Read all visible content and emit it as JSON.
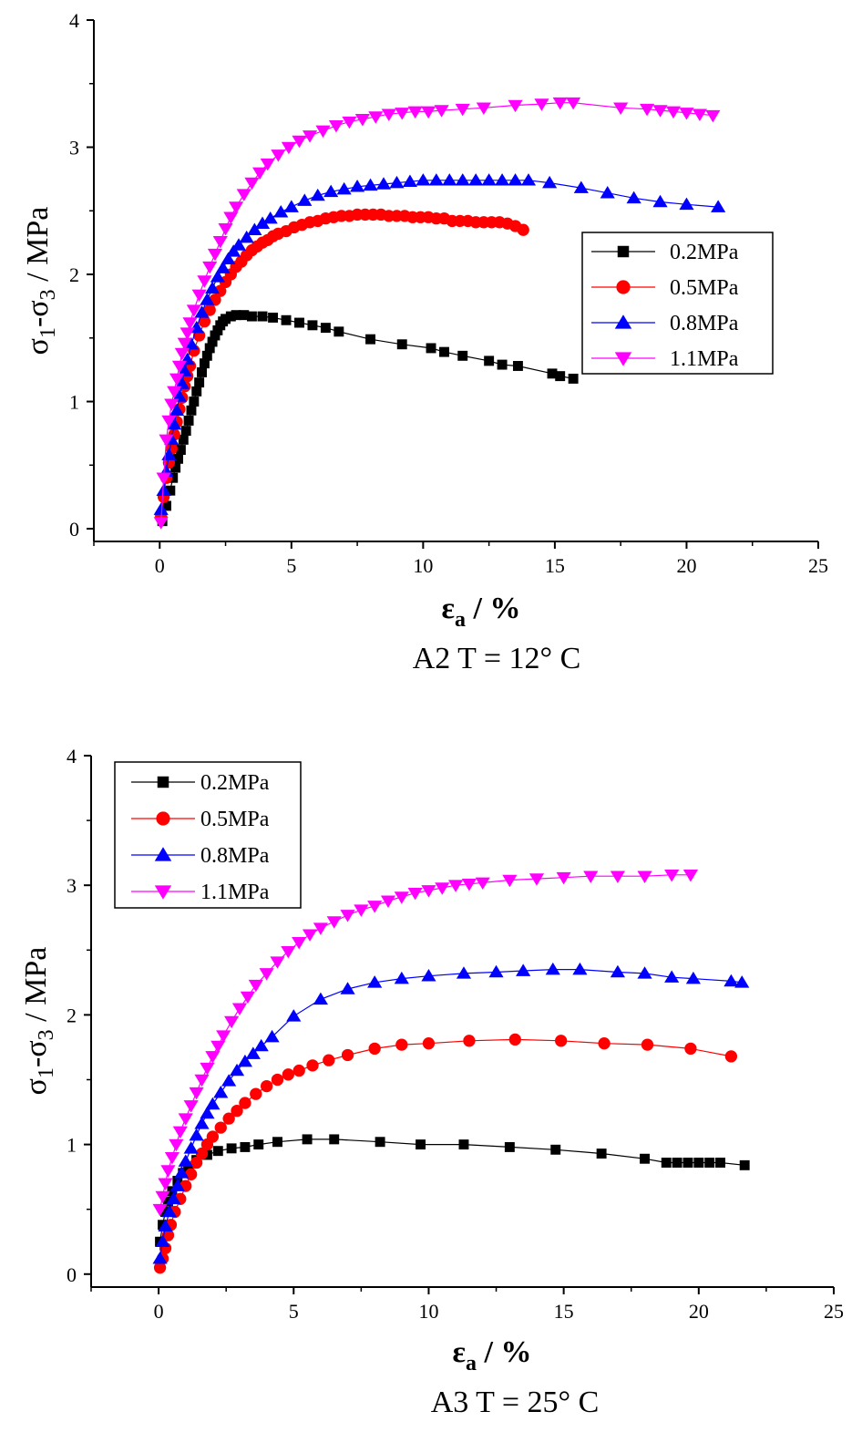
{
  "chart_data": [
    {
      "type": "scatter",
      "caption": "A2 T = 12°  C",
      "xlabel": "εa / %",
      "xlabel_main": "ε",
      "xlabel_sub": "a",
      "xlabel_rest": " / %",
      "ylabel": "σ1-σ3 / MPa",
      "ylabel_parts": [
        "σ",
        "1",
        "-σ",
        "3",
        " / MPa"
      ],
      "xlim": [
        -2.5,
        25
      ],
      "ylim": [
        -0.1,
        4
      ],
      "xticks": [
        0,
        5,
        10,
        15,
        20,
        25
      ],
      "yticks": [
        0,
        1,
        2,
        3,
        4
      ],
      "xtick_labels": [
        "0",
        "5",
        "10",
        "15",
        "20",
        "25"
      ],
      "ytick_labels": [
        "0",
        "1",
        "2",
        "3",
        "4"
      ],
      "legend": "right",
      "series": [
        {
          "name": "0.2MPa",
          "marker": "square",
          "color": "#000000",
          "x": [
            0.1,
            0.25,
            0.4,
            0.5,
            0.6,
            0.7,
            0.8,
            0.9,
            1.0,
            1.1,
            1.2,
            1.3,
            1.4,
            1.5,
            1.6,
            1.7,
            1.8,
            1.9,
            2.0,
            2.1,
            2.2,
            2.3,
            2.4,
            2.5,
            2.7,
            2.9,
            3.2,
            3.5,
            3.9,
            4.3,
            4.8,
            5.3,
            5.8,
            6.3,
            6.8,
            8.0,
            9.2,
            10.3,
            10.8,
            11.5,
            12.5,
            13.0,
            13.6,
            14.9,
            15.2,
            15.7
          ],
          "y": [
            0.06,
            0.18,
            0.3,
            0.4,
            0.48,
            0.55,
            0.62,
            0.7,
            0.77,
            0.85,
            0.93,
            1.0,
            1.08,
            1.15,
            1.23,
            1.3,
            1.36,
            1.42,
            1.47,
            1.52,
            1.56,
            1.6,
            1.63,
            1.65,
            1.67,
            1.68,
            1.68,
            1.67,
            1.67,
            1.66,
            1.64,
            1.62,
            1.6,
            1.58,
            1.55,
            1.49,
            1.45,
            1.42,
            1.39,
            1.36,
            1.32,
            1.29,
            1.28,
            1.22,
            1.2,
            1.18
          ]
        },
        {
          "name": "0.5MPa",
          "marker": "circle",
          "color": "#ff0000",
          "x": [
            0.05,
            0.15,
            0.25,
            0.35,
            0.45,
            0.55,
            0.65,
            0.75,
            0.85,
            0.95,
            1.05,
            1.15,
            1.3,
            1.5,
            1.7,
            1.9,
            2.1,
            2.3,
            2.5,
            2.7,
            2.9,
            3.1,
            3.3,
            3.5,
            3.7,
            3.9,
            4.1,
            4.3,
            4.5,
            4.8,
            5.1,
            5.4,
            5.7,
            6.0,
            6.3,
            6.6,
            6.9,
            7.2,
            7.5,
            7.8,
            8.1,
            8.4,
            8.7,
            9.0,
            9.3,
            9.6,
            9.9,
            10.2,
            10.5,
            10.8,
            11.1,
            11.4,
            11.7,
            12.0,
            12.3,
            12.6,
            12.9,
            13.2,
            13.5,
            13.8
          ],
          "y": [
            0.1,
            0.25,
            0.4,
            0.52,
            0.63,
            0.74,
            0.84,
            0.94,
            1.03,
            1.12,
            1.2,
            1.28,
            1.4,
            1.52,
            1.63,
            1.72,
            1.8,
            1.87,
            1.94,
            2.0,
            2.06,
            2.1,
            2.15,
            2.19,
            2.22,
            2.25,
            2.27,
            2.3,
            2.32,
            2.34,
            2.37,
            2.39,
            2.41,
            2.42,
            2.44,
            2.45,
            2.46,
            2.46,
            2.47,
            2.47,
            2.47,
            2.47,
            2.46,
            2.46,
            2.46,
            2.45,
            2.45,
            2.45,
            2.44,
            2.44,
            2.42,
            2.42,
            2.42,
            2.41,
            2.41,
            2.41,
            2.41,
            2.4,
            2.38,
            2.35
          ]
        },
        {
          "name": "0.8MPa",
          "marker": "triangle-up",
          "color": "#0000ff",
          "x": [
            0.05,
            0.15,
            0.25,
            0.35,
            0.45,
            0.55,
            0.65,
            0.75,
            0.85,
            0.95,
            1.05,
            1.2,
            1.4,
            1.6,
            1.8,
            2.0,
            2.2,
            2.4,
            2.6,
            2.8,
            3.0,
            3.3,
            3.6,
            3.9,
            4.2,
            4.6,
            5.0,
            5.5,
            6.0,
            6.5,
            7.0,
            7.5,
            8.0,
            8.5,
            9.0,
            9.5,
            10.0,
            10.5,
            11.0,
            11.5,
            12.0,
            12.5,
            13.0,
            13.5,
            14.0,
            14.8,
            16.0,
            17.0,
            18.0,
            19.0,
            20.0,
            21.2
          ],
          "y": [
            0.15,
            0.3,
            0.45,
            0.58,
            0.7,
            0.82,
            0.93,
            1.04,
            1.14,
            1.24,
            1.33,
            1.45,
            1.58,
            1.7,
            1.8,
            1.89,
            1.98,
            2.05,
            2.12,
            2.18,
            2.23,
            2.29,
            2.35,
            2.4,
            2.44,
            2.49,
            2.53,
            2.58,
            2.62,
            2.65,
            2.67,
            2.69,
            2.7,
            2.71,
            2.72,
            2.73,
            2.74,
            2.74,
            2.74,
            2.74,
            2.74,
            2.74,
            2.74,
            2.74,
            2.74,
            2.72,
            2.68,
            2.64,
            2.6,
            2.57,
            2.55,
            2.53
          ]
        },
        {
          "name": "1.1MPa",
          "marker": "triangle-down",
          "color": "#ff00ff",
          "x": [
            0.05,
            0.15,
            0.25,
            0.35,
            0.45,
            0.55,
            0.65,
            0.75,
            0.85,
            0.95,
            1.05,
            1.15,
            1.3,
            1.5,
            1.7,
            1.9,
            2.1,
            2.3,
            2.5,
            2.7,
            2.9,
            3.2,
            3.5,
            3.8,
            4.1,
            4.5,
            4.9,
            5.3,
            5.7,
            6.2,
            6.7,
            7.2,
            7.7,
            8.2,
            8.7,
            9.2,
            9.7,
            10.2,
            10.7,
            11.5,
            12.3,
            13.5,
            14.5,
            15.2,
            15.7,
            17.5,
            18.5,
            19.0,
            19.5,
            20.0,
            20.5,
            21.0
          ],
          "y": [
            0.05,
            0.4,
            0.7,
            0.85,
            0.98,
            1.08,
            1.18,
            1.28,
            1.38,
            1.46,
            1.54,
            1.62,
            1.72,
            1.84,
            1.95,
            2.06,
            2.16,
            2.26,
            2.36,
            2.45,
            2.53,
            2.63,
            2.72,
            2.8,
            2.87,
            2.94,
            3.0,
            3.05,
            3.09,
            3.13,
            3.17,
            3.2,
            3.22,
            3.24,
            3.26,
            3.27,
            3.28,
            3.28,
            3.29,
            3.3,
            3.31,
            3.33,
            3.34,
            3.35,
            3.35,
            3.31,
            3.3,
            3.29,
            3.28,
            3.27,
            3.26,
            3.25
          ]
        }
      ]
    },
    {
      "type": "scatter",
      "caption": "A3  T = 25°  C",
      "xlabel": "εa / %",
      "xlabel_main": "ε",
      "xlabel_sub": "a",
      "xlabel_rest": " / %",
      "ylabel": "σ1-σ3 / MPa",
      "ylabel_parts": [
        "σ",
        "1",
        "-σ",
        "3",
        " / MPa"
      ],
      "xlim": [
        -2.5,
        25
      ],
      "ylim": [
        -0.1,
        4
      ],
      "xticks": [
        0,
        5,
        10,
        15,
        20,
        25
      ],
      "yticks": [
        0,
        1,
        2,
        3,
        4
      ],
      "xtick_labels": [
        "0",
        "5",
        "10",
        "15",
        "20",
        "25"
      ],
      "ytick_labels": [
        "0",
        "1",
        "2",
        "3",
        "4"
      ],
      "legend": "top-left",
      "series": [
        {
          "name": "0.2MPa",
          "marker": "square",
          "color": "#000000",
          "x": [
            0.05,
            0.15,
            0.25,
            0.35,
            0.5,
            0.7,
            0.9,
            1.1,
            1.4,
            1.8,
            2.2,
            2.7,
            3.2,
            3.7,
            4.4,
            5.5,
            6.5,
            8.2,
            9.7,
            11.3,
            13.0,
            14.7,
            16.4,
            18.0,
            18.8,
            19.2,
            19.6,
            20.0,
            20.4,
            20.8,
            21.7
          ],
          "y": [
            0.25,
            0.38,
            0.48,
            0.56,
            0.64,
            0.72,
            0.78,
            0.83,
            0.88,
            0.92,
            0.95,
            0.97,
            0.98,
            1.0,
            1.02,
            1.04,
            1.04,
            1.02,
            1.0,
            1.0,
            0.98,
            0.96,
            0.93,
            0.89,
            0.86,
            0.86,
            0.86,
            0.86,
            0.86,
            0.86,
            0.84
          ]
        },
        {
          "name": "0.5MPa",
          "marker": "circle",
          "color": "#ff0000",
          "x": [
            0.05,
            0.15,
            0.25,
            0.35,
            0.45,
            0.6,
            0.8,
            1.0,
            1.2,
            1.4,
            1.6,
            1.8,
            2.0,
            2.3,
            2.6,
            2.9,
            3.2,
            3.6,
            4.0,
            4.4,
            4.8,
            5.2,
            5.7,
            6.3,
            7.0,
            8.0,
            9.0,
            10.0,
            11.5,
            13.2,
            14.9,
            16.5,
            18.1,
            19.7,
            21.2
          ],
          "y": [
            0.05,
            0.12,
            0.2,
            0.3,
            0.38,
            0.48,
            0.58,
            0.68,
            0.77,
            0.86,
            0.93,
            1.0,
            1.06,
            1.13,
            1.2,
            1.26,
            1.32,
            1.39,
            1.45,
            1.5,
            1.54,
            1.57,
            1.61,
            1.65,
            1.69,
            1.74,
            1.77,
            1.78,
            1.8,
            1.81,
            1.8,
            1.78,
            1.77,
            1.74,
            1.68
          ]
        },
        {
          "name": "0.8MPa",
          "marker": "triangle-up",
          "color": "#0000ff",
          "x": [
            0.05,
            0.15,
            0.25,
            0.4,
            0.55,
            0.7,
            0.85,
            1.0,
            1.2,
            1.4,
            1.6,
            1.8,
            2.0,
            2.3,
            2.6,
            2.9,
            3.2,
            3.5,
            3.8,
            4.2,
            5.0,
            6.0,
            7.0,
            8.0,
            9.0,
            10.0,
            11.3,
            12.5,
            13.5,
            14.6,
            15.6,
            17.0,
            18.0,
            19.0,
            19.8,
            21.2,
            21.6
          ],
          "y": [
            0.12,
            0.25,
            0.37,
            0.48,
            0.58,
            0.68,
            0.78,
            0.87,
            0.97,
            1.07,
            1.16,
            1.24,
            1.31,
            1.4,
            1.49,
            1.57,
            1.64,
            1.7,
            1.76,
            1.83,
            1.99,
            2.12,
            2.2,
            2.25,
            2.28,
            2.3,
            2.32,
            2.33,
            2.34,
            2.35,
            2.35,
            2.33,
            2.32,
            2.29,
            2.28,
            2.26,
            2.25
          ]
        },
        {
          "name": "1.1MPa",
          "marker": "triangle-down",
          "color": "#ff00ff",
          "x": [
            0.05,
            0.15,
            0.25,
            0.35,
            0.5,
            0.65,
            0.8,
            1.0,
            1.2,
            1.4,
            1.6,
            1.8,
            2.0,
            2.2,
            2.4,
            2.7,
            3.0,
            3.3,
            3.6,
            4.0,
            4.4,
            4.8,
            5.2,
            5.6,
            6.0,
            6.5,
            7.0,
            7.5,
            8.0,
            8.5,
            9.0,
            9.5,
            10.0,
            10.5,
            11.0,
            11.5,
            12.0,
            13.0,
            14.0,
            15.0,
            16.0,
            17.0,
            18.0,
            19.0,
            19.7
          ],
          "y": [
            0.5,
            0.6,
            0.7,
            0.8,
            0.9,
            1.0,
            1.1,
            1.2,
            1.3,
            1.4,
            1.5,
            1.59,
            1.68,
            1.76,
            1.84,
            1.95,
            2.05,
            2.14,
            2.23,
            2.32,
            2.41,
            2.49,
            2.56,
            2.62,
            2.67,
            2.72,
            2.77,
            2.81,
            2.84,
            2.88,
            2.91,
            2.94,
            2.96,
            2.98,
            3.0,
            3.01,
            3.02,
            3.04,
            3.05,
            3.06,
            3.07,
            3.07,
            3.07,
            3.08,
            3.08
          ]
        }
      ]
    }
  ]
}
